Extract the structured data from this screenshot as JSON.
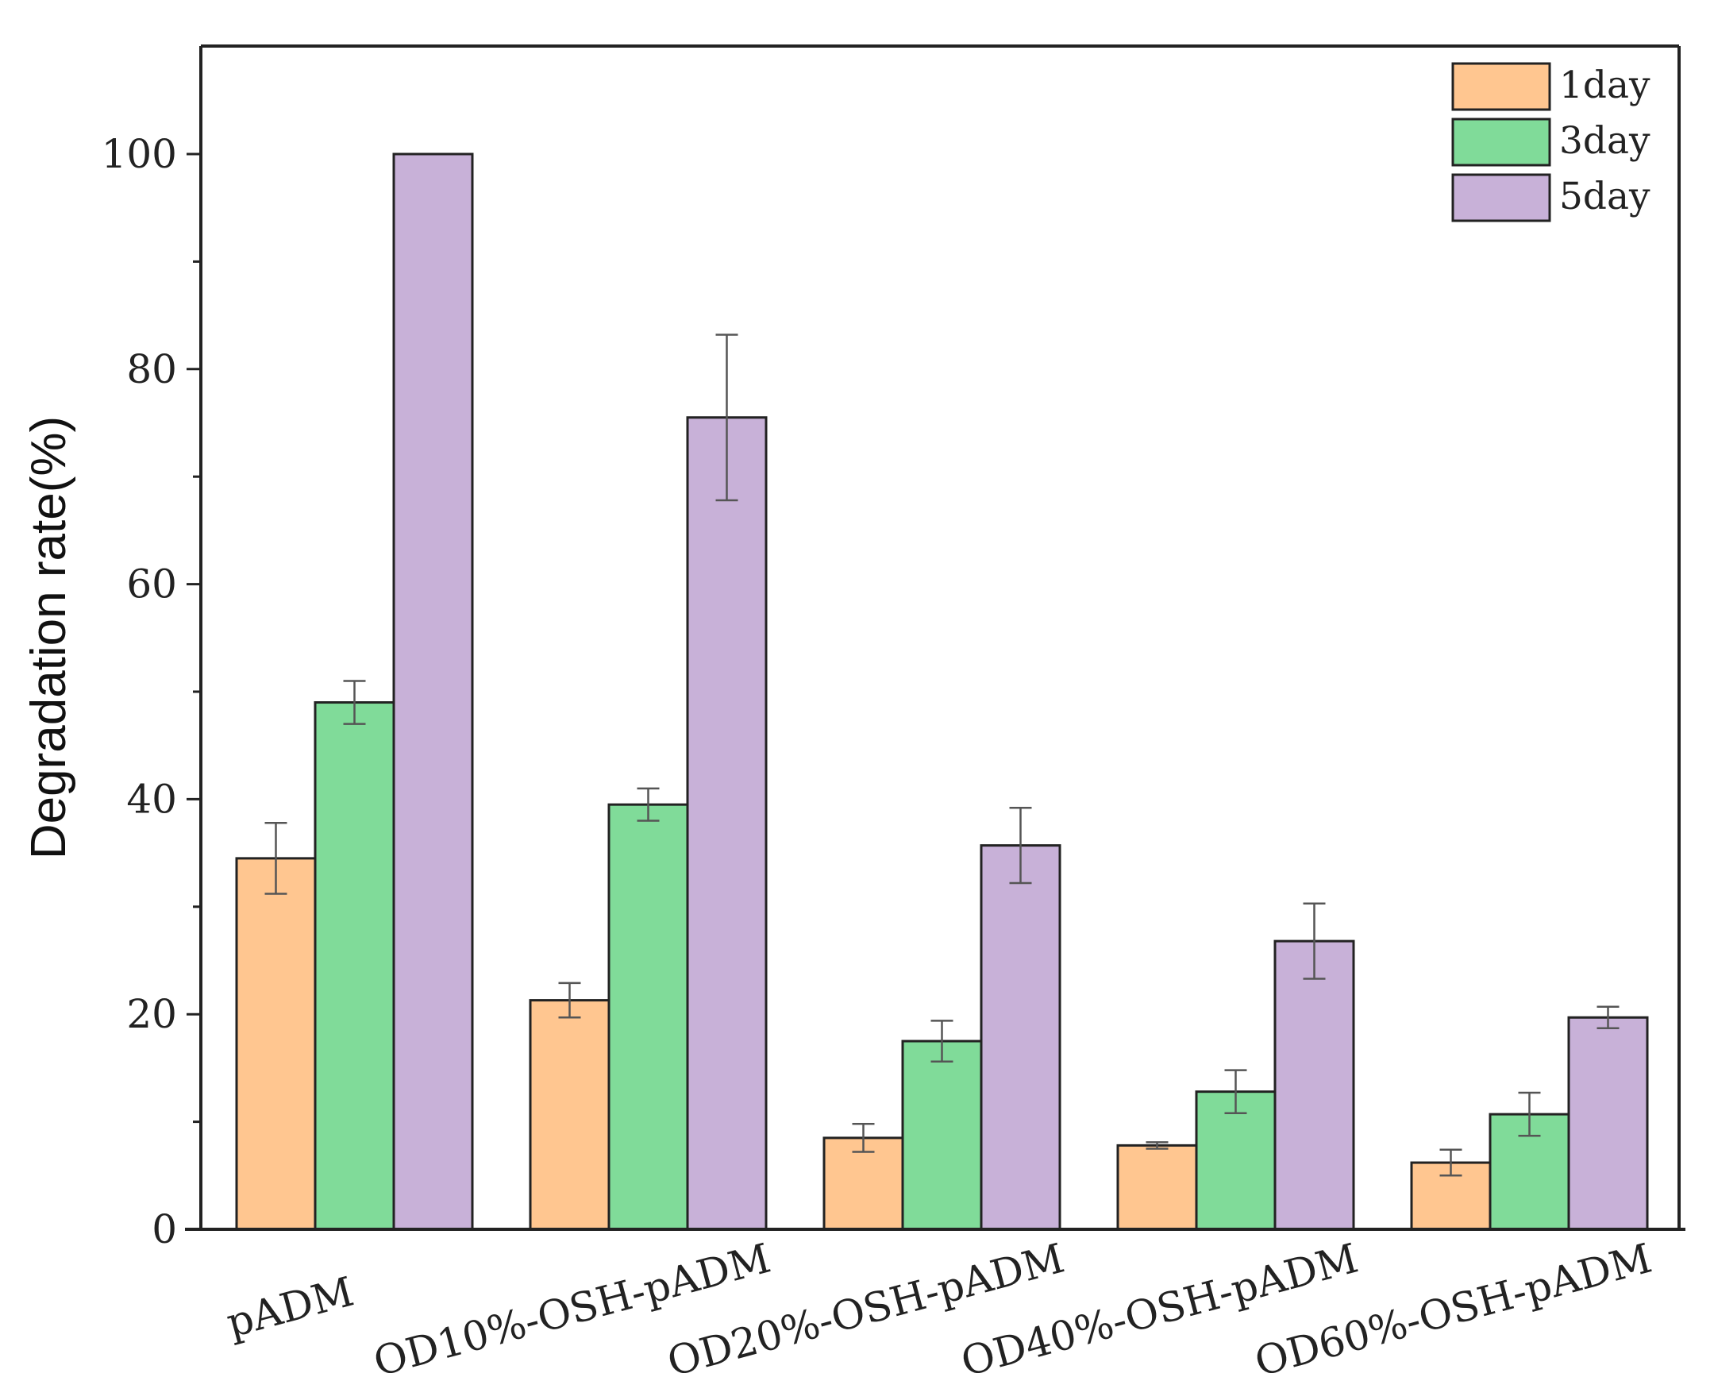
{
  "chart_data": {
    "type": "bar",
    "title": "",
    "xlabel": "",
    "ylabel": "Degradation rate(%)",
    "ylim": [
      0,
      110
    ],
    "yticks": [
      "0",
      "20",
      "40",
      "60",
      "80",
      "100"
    ],
    "grid": false,
    "legend_position": "top-right",
    "categories": [
      "pADM",
      "OD10%-OSH-pADM",
      "OD20%-OSH-pADM",
      "OD40%-OSH-pADM",
      "OD60%-OSH-pADM"
    ],
    "series": [
      {
        "name": "1day",
        "color": "#FFC690",
        "values": [
          34.5,
          21.3,
          8.5,
          7.8,
          6.2
        ],
        "errors": [
          3.3,
          1.6,
          1.3,
          0.3,
          1.2
        ]
      },
      {
        "name": "3day",
        "color": "#80DB99",
        "values": [
          49.0,
          39.5,
          17.5,
          12.8,
          10.7
        ],
        "errors": [
          2.0,
          1.5,
          1.9,
          2.0,
          2.0
        ]
      },
      {
        "name": "5day",
        "color": "#C8B1D8",
        "values": [
          100.0,
          75.5,
          35.7,
          26.8,
          19.7
        ],
        "errors": [
          0,
          7.7,
          3.5,
          3.5,
          1.0
        ]
      }
    ]
  }
}
